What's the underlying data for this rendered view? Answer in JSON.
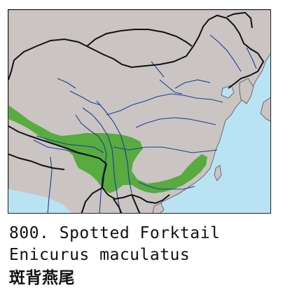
{
  "caption": {
    "title": "800. Spotted Forktail",
    "scientific_name": "Enicurus maculatus",
    "chinese_name": "斑背燕尾"
  },
  "colors": {
    "water": "#b9e3f2",
    "land": "#cac5c3",
    "range": "#57ab3f",
    "river": "#1f3c9c",
    "border": "#111111"
  },
  "legend": {
    "range_meaning": "species distribution range"
  }
}
